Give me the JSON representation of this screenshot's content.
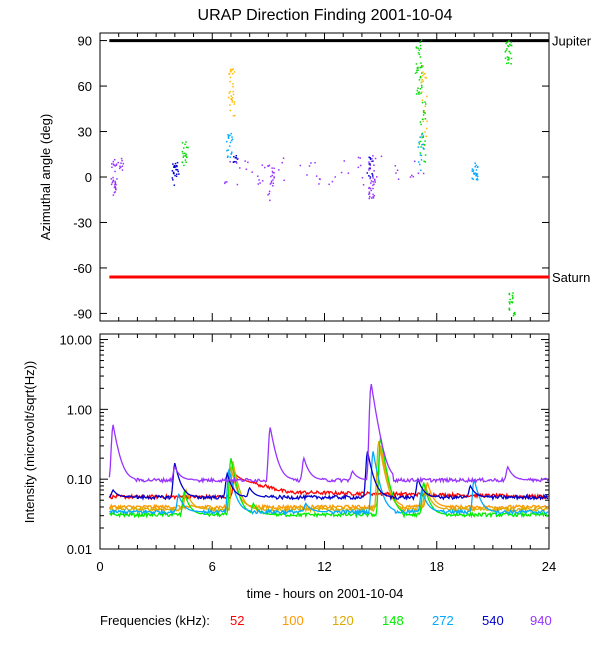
{
  "chart_data": [
    {
      "type": "scatter",
      "panel": "top",
      "title": "URAP Direction Finding  2001-10-04",
      "xlabel": "",
      "ylabel": "Azimuthal angle (deg)",
      "xlim": [
        0,
        24
      ],
      "ylim": [
        -95,
        95
      ],
      "yticks": [
        -90,
        -60,
        -30,
        0,
        30,
        60,
        90
      ],
      "ytick_labels": [
        "-90",
        "-60",
        "-30",
        "0",
        "30",
        "60",
        "90"
      ],
      "reference_lines": [
        {
          "name": "Jupiter",
          "y": 90,
          "color": "#000000",
          "x": [
            0.5,
            24
          ]
        },
        {
          "name": "Saturn",
          "y": -66,
          "color": "#ff0000",
          "x": [
            0.5,
            24
          ]
        }
      ],
      "clusters": [
        {
          "x": 0.7,
          "y_range": [
            -12,
            12
          ],
          "color": "#9933ff",
          "n": 30
        },
        {
          "x": 1.1,
          "y_range": [
            5,
            14
          ],
          "color": "#9933ff",
          "n": 10
        },
        {
          "x": 4.0,
          "y_range": [
            -5,
            10
          ],
          "color": "#0000cc",
          "n": 25
        },
        {
          "x": 4.5,
          "y_range": [
            8,
            25
          ],
          "color": "#00dd00",
          "n": 20
        },
        {
          "x": 7.0,
          "y_range": [
            40,
            72
          ],
          "color": "#ffbb00",
          "n": 30
        },
        {
          "x": 6.9,
          "y_range": [
            12,
            30
          ],
          "color": "#00aaff",
          "n": 20
        },
        {
          "x": 7.2,
          "y_range": [
            10,
            15
          ],
          "color": "#0000cc",
          "n": 8
        },
        {
          "x": 9.1,
          "y_range": [
            -15,
            8
          ],
          "color": "#9933ff",
          "n": 20
        },
        {
          "x": 14.5,
          "y_range": [
            -15,
            15
          ],
          "color": "#9933ff",
          "n": 35
        },
        {
          "x": 14.4,
          "y_range": [
            0,
            14
          ],
          "color": "#0000cc",
          "n": 12
        },
        {
          "x": 17.0,
          "y_range": [
            55,
            92
          ],
          "color": "#00dd00",
          "n": 40
        },
        {
          "x": 17.3,
          "y_range": [
            20,
            75
          ],
          "color": "#ffbb00",
          "n": 25
        },
        {
          "x": 17.2,
          "y_range": [
            10,
            50
          ],
          "color": "#00dd00",
          "n": 25
        },
        {
          "x": 17.1,
          "y_range": [
            0,
            30
          ],
          "color": "#00aaff",
          "n": 15
        },
        {
          "x": 20.0,
          "y_range": [
            -2,
            10
          ],
          "color": "#00aaff",
          "n": 25
        },
        {
          "x": 21.8,
          "y_range": [
            75,
            92
          ],
          "color": "#00dd00",
          "n": 25
        },
        {
          "x": 22.0,
          "y_range": [
            -92,
            -75
          ],
          "color": "#00dd00",
          "n": 20
        },
        {
          "x": 12.0,
          "y_range": [
            -5,
            15
          ],
          "color": "#9933ff",
          "n": 60,
          "spread": 11
        }
      ]
    },
    {
      "type": "line",
      "panel": "bottom",
      "xlabel": "time - hours on 2001-10-04",
      "ylabel": "Intensity (microvolt/sqrt(Hz))",
      "yscale": "log",
      "xlim": [
        0,
        24
      ],
      "ylim": [
        0.01,
        12
      ],
      "xticks": [
        0,
        6,
        12,
        18,
        24
      ],
      "xtick_labels": [
        "0",
        "6",
        "12",
        "18",
        "24"
      ],
      "yticks": [
        0.01,
        0.1,
        1,
        10
      ],
      "ytick_labels": [
        "0.01",
        "0.10",
        "1.00",
        "10.00"
      ],
      "legend_title": "Frequencies (kHz):",
      "series": [
        {
          "name": "52",
          "color": "#ff0000",
          "baseline": 0.056,
          "peaks": [
            {
              "x": 7.2,
              "y": 0.12
            }
          ],
          "drift": [
            {
              "x": 7.2,
              "y": 0.1
            },
            {
              "x": 10,
              "y": 0.065
            },
            {
              "x": 24,
              "y": 0.056
            }
          ]
        },
        {
          "name": "100",
          "color": "#ff9900",
          "baseline": 0.04,
          "peaks": [
            {
              "x": 7.0,
              "y": 0.15
            },
            {
              "x": 15.0,
              "y": 0.3
            },
            {
              "x": 17.5,
              "y": 0.09
            }
          ]
        },
        {
          "name": "120",
          "color": "#ddaa00",
          "baseline": 0.037,
          "peaks": [
            {
              "x": 4.6,
              "y": 0.07
            },
            {
              "x": 7.1,
              "y": 0.18
            },
            {
              "x": 14.9,
              "y": 0.35
            },
            {
              "x": 17.4,
              "y": 0.08
            }
          ]
        },
        {
          "name": "148",
          "color": "#00ee00",
          "baseline": 0.031,
          "peaks": [
            {
              "x": 4.5,
              "y": 0.065
            },
            {
              "x": 7.0,
              "y": 0.2
            },
            {
              "x": 15.0,
              "y": 0.4
            },
            {
              "x": 17.3,
              "y": 0.09
            },
            {
              "x": 8.2,
              "y": 0.045
            }
          ]
        },
        {
          "name": "272",
          "color": "#00aaff",
          "baseline": 0.034,
          "peaks": [
            {
              "x": 4.2,
              "y": 0.06
            },
            {
              "x": 6.9,
              "y": 0.14
            },
            {
              "x": 14.6,
              "y": 0.25
            },
            {
              "x": 17.2,
              "y": 0.07
            },
            {
              "x": 20.0,
              "y": 0.1
            },
            {
              "x": 11.0,
              "y": 0.045
            }
          ]
        },
        {
          "name": "540",
          "color": "#0000cc",
          "baseline": 0.055,
          "peaks": [
            {
              "x": 0.7,
              "y": 0.07
            },
            {
              "x": 4.0,
              "y": 0.17
            },
            {
              "x": 6.8,
              "y": 0.12
            },
            {
              "x": 8.0,
              "y": 0.075
            },
            {
              "x": 14.3,
              "y": 0.25
            },
            {
              "x": 17.0,
              "y": 0.1
            },
            {
              "x": 19.8,
              "y": 0.08
            }
          ]
        },
        {
          "name": "940",
          "color": "#9933ff",
          "baseline": 0.097,
          "peaks": [
            {
              "x": 0.7,
              "y": 0.6
            },
            {
              "x": 4.0,
              "y": 0.15
            },
            {
              "x": 9.1,
              "y": 0.55
            },
            {
              "x": 10.9,
              "y": 0.2
            },
            {
              "x": 13.5,
              "y": 0.13
            },
            {
              "x": 14.5,
              "y": 2.3
            },
            {
              "x": 21.8,
              "y": 0.15
            }
          ]
        }
      ]
    }
  ]
}
